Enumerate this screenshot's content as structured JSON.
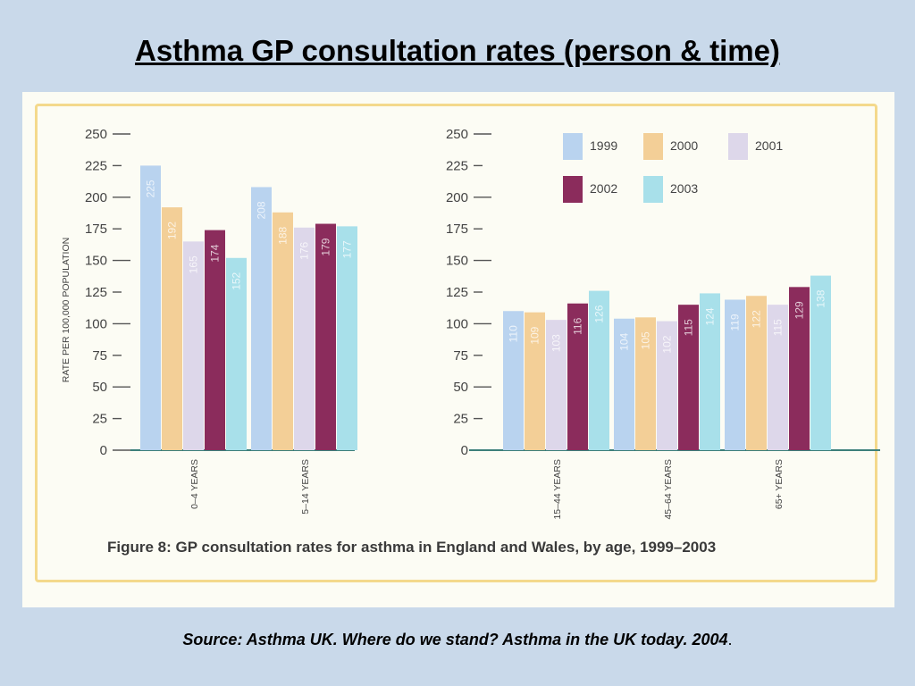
{
  "title": "Asthma GP consultation rates (person & time)",
  "source": "Source: Asthma UK.  Where do we stand? Asthma in the UK today. 2004",
  "source_suffix": ".",
  "figure_caption": "Figure 8: GP consultation rates for asthma in England and Wales, by age, 1999–2003",
  "colors": {
    "1999": "#b9d3ef",
    "2000": "#f3cf97",
    "2001": "#ddd7ea",
    "2002": "#8b2c5c",
    "2003": "#a8e0ea"
  },
  "chart_data": [
    {
      "type": "bar",
      "categories": [
        "0–4 YEARS",
        "5–14 YEARS"
      ],
      "series": [
        {
          "name": "1999",
          "values": [
            225,
            208
          ]
        },
        {
          "name": "2000",
          "values": [
            192,
            188
          ]
        },
        {
          "name": "2001",
          "values": [
            165,
            176
          ]
        },
        {
          "name": "2002",
          "values": [
            174,
            179
          ]
        },
        {
          "name": "2003",
          "values": [
            152,
            177
          ]
        }
      ],
      "ylabel": "RATE PER 100,000 POPULATION",
      "ylim": [
        0,
        250
      ],
      "yticks": [
        0,
        25,
        50,
        75,
        100,
        125,
        150,
        175,
        200,
        225,
        250
      ],
      "data_labels": true
    },
    {
      "type": "bar",
      "categories": [
        "15–44 YEARS",
        "45–64 YEARS",
        "65+ YEARS"
      ],
      "series": [
        {
          "name": "1999",
          "values": [
            110,
            104,
            119
          ]
        },
        {
          "name": "2000",
          "values": [
            109,
            105,
            122
          ]
        },
        {
          "name": "2001",
          "values": [
            103,
            102,
            115
          ]
        },
        {
          "name": "2002",
          "values": [
            116,
            115,
            129
          ]
        },
        {
          "name": "2003",
          "values": [
            126,
            124,
            138
          ]
        }
      ],
      "ylim": [
        0,
        250
      ],
      "yticks": [
        0,
        25,
        50,
        75,
        100,
        125,
        150,
        175,
        200,
        225,
        250
      ],
      "legend": [
        "1999",
        "2000",
        "2001",
        "2002",
        "2003"
      ],
      "legend_position": "top-right",
      "data_labels": true
    }
  ]
}
